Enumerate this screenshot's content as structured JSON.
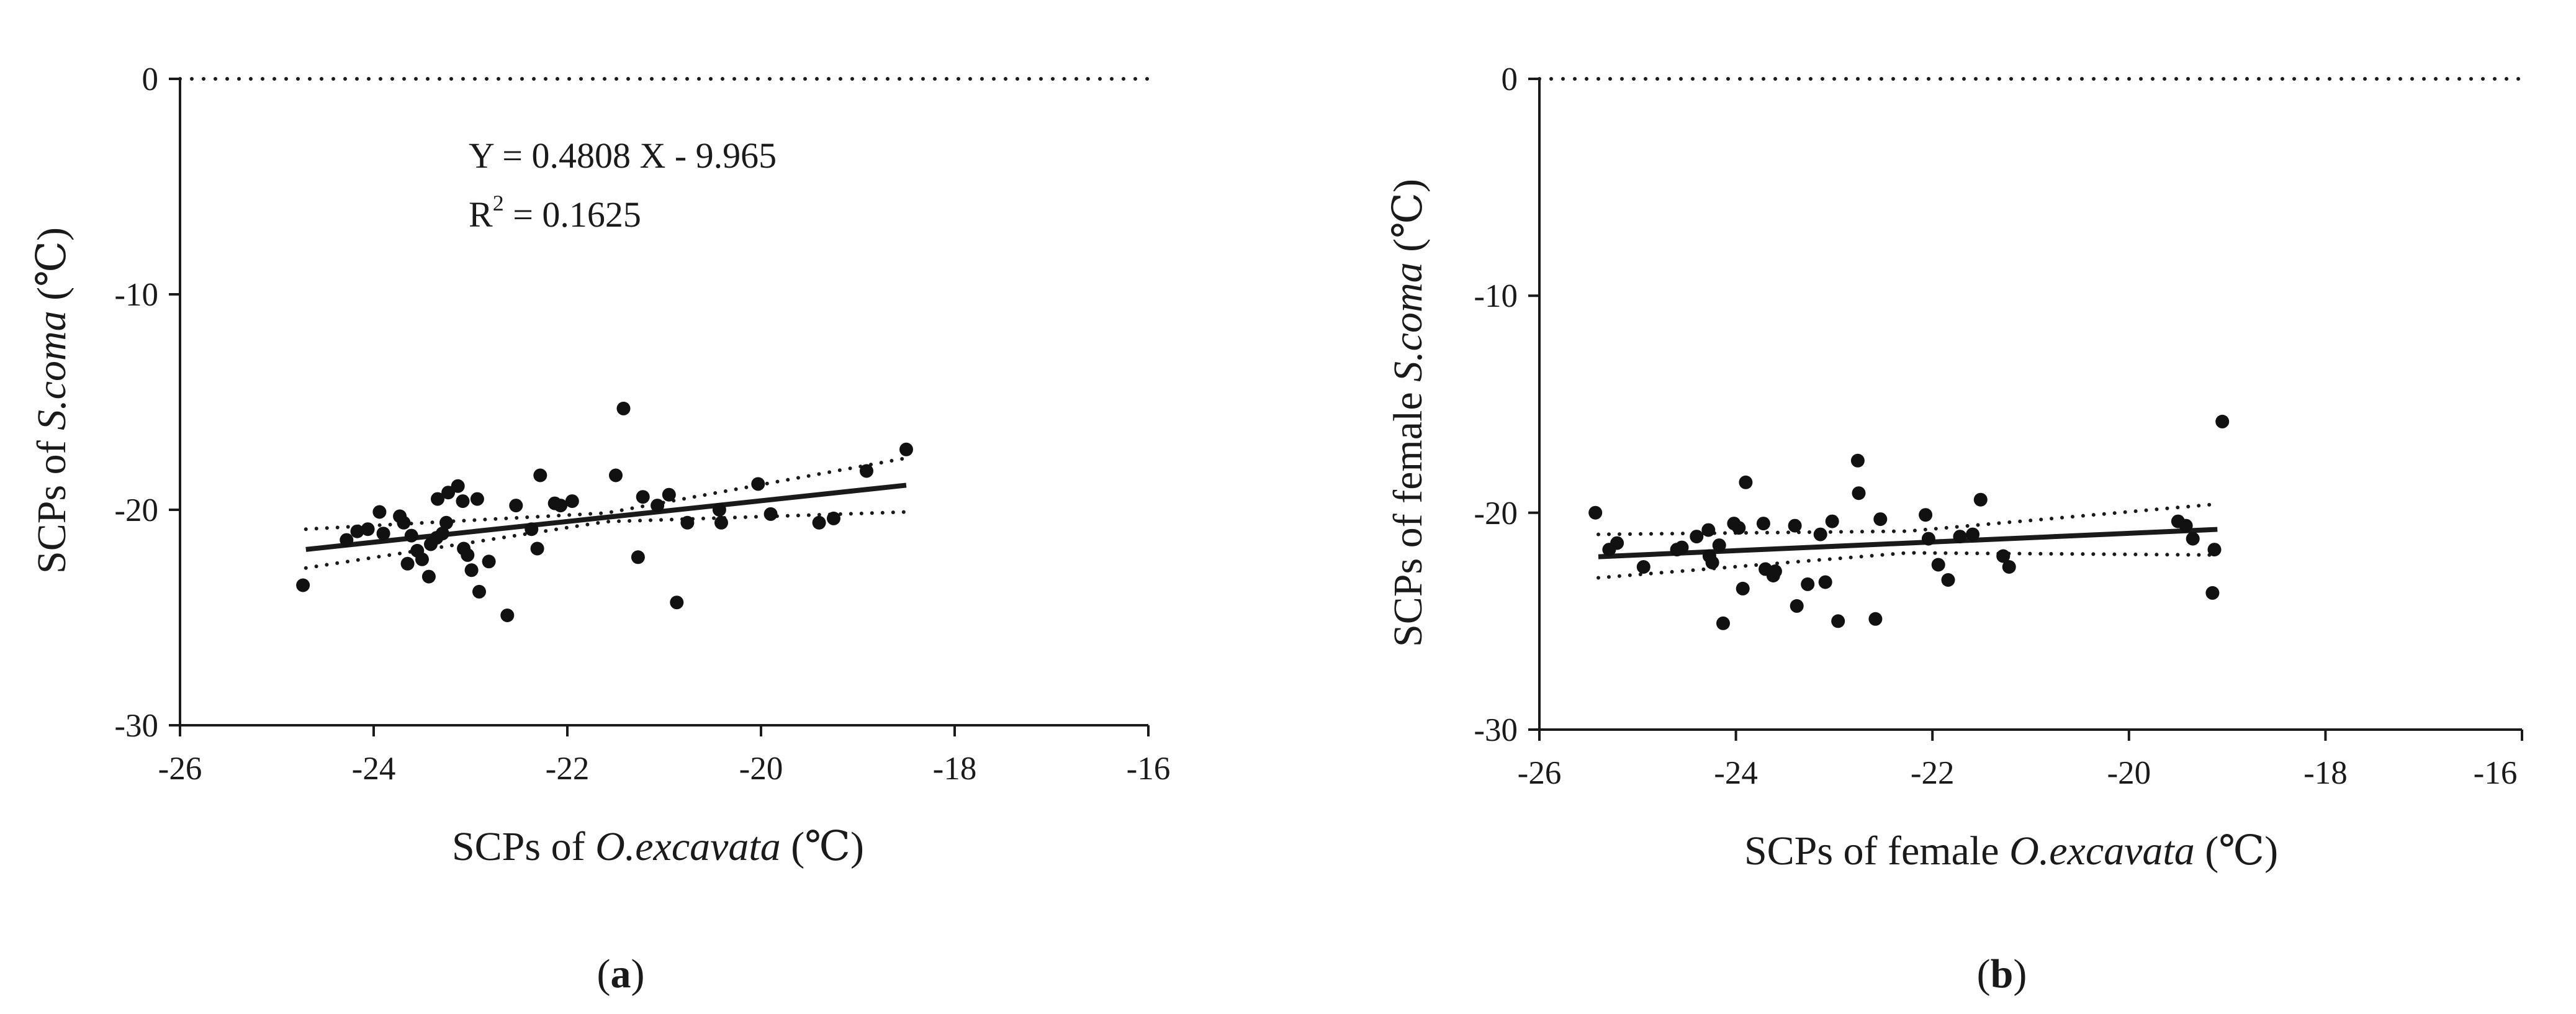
{
  "chart_data": [
    {
      "type": "scatter",
      "panel_label": {
        "open": "(",
        "letter": "a",
        "close": ")"
      },
      "xlabel_parts": {
        "prefix": "SCPs of ",
        "italic": "O.excavata",
        "suffix": " (℃)"
      },
      "ylabel_parts": {
        "prefix": "SCPs of ",
        "italic": "S.coma",
        "suffix": " (℃)"
      },
      "xlim": [
        -26,
        -16
      ],
      "ylim": [
        -30,
        0
      ],
      "x_ticks": [
        -26,
        -24,
        -22,
        -20,
        -18,
        -16
      ],
      "y_ticks": [
        0,
        -10,
        -20,
        -30
      ],
      "x_tick_labels": [
        "-26",
        "-24",
        "-22",
        "-20",
        "-18",
        "-16"
      ],
      "y_tick_labels": [
        "0",
        "-10",
        "-20",
        "-30"
      ],
      "reference_line_y": 0,
      "annotation": {
        "equation": "Y = 0.4808 X - 9.965",
        "r2_label": "R",
        "r2_sup": "2",
        "r2_value": " = 0.1625"
      },
      "fit": {
        "slope": 0.4808,
        "intercept": -9.965,
        "x_range": [
          -24.7,
          -18.5
        ]
      },
      "confidence_band": {
        "x": [
          -24.7,
          -21.6,
          -18.5
        ],
        "upper": [
          -20.9,
          -20.15,
          -17.6
        ],
        "lower": [
          -22.7,
          -20.55,
          -20.1
        ]
      },
      "points": [
        [
          -24.73,
          -23.5
        ],
        [
          -24.28,
          -21.4
        ],
        [
          -24.17,
          -21.0
        ],
        [
          -24.06,
          -20.9
        ],
        [
          -23.94,
          -20.1
        ],
        [
          -23.9,
          -21.1
        ],
        [
          -23.73,
          -20.3
        ],
        [
          -23.69,
          -20.6
        ],
        [
          -23.65,
          -22.5
        ],
        [
          -23.61,
          -21.2
        ],
        [
          -23.55,
          -21.9
        ],
        [
          -23.5,
          -22.3
        ],
        [
          -23.43,
          -23.1
        ],
        [
          -23.41,
          -21.6
        ],
        [
          -23.35,
          -21.3
        ],
        [
          -23.34,
          -19.5
        ],
        [
          -23.29,
          -21.1
        ],
        [
          -23.25,
          -20.6
        ],
        [
          -23.23,
          -19.2
        ],
        [
          -23.13,
          -18.9
        ],
        [
          -23.08,
          -19.6
        ],
        [
          -23.07,
          -21.8
        ],
        [
          -23.03,
          -22.1
        ],
        [
          -22.99,
          -22.8
        ],
        [
          -22.93,
          -19.5
        ],
        [
          -22.91,
          -23.8
        ],
        [
          -22.81,
          -22.4
        ],
        [
          -22.62,
          -24.9
        ],
        [
          -22.53,
          -19.8
        ],
        [
          -22.37,
          -20.9
        ],
        [
          -22.31,
          -21.8
        ],
        [
          -22.28,
          -18.4
        ],
        [
          -22.13,
          -19.7
        ],
        [
          -22.07,
          -19.8
        ],
        [
          -21.95,
          -19.6
        ],
        [
          -21.5,
          -18.4
        ],
        [
          -21.42,
          -15.3
        ],
        [
          -21.27,
          -22.2
        ],
        [
          -21.22,
          -19.4
        ],
        [
          -21.07,
          -19.8
        ],
        [
          -20.95,
          -19.3
        ],
        [
          -20.87,
          -24.3
        ],
        [
          -20.76,
          -20.6
        ],
        [
          -20.43,
          -20.0
        ],
        [
          -20.41,
          -20.6
        ],
        [
          -20.03,
          -18.8
        ],
        [
          -19.9,
          -20.2
        ],
        [
          -19.4,
          -20.6
        ],
        [
          -19.25,
          -20.4
        ],
        [
          -18.91,
          -18.2
        ],
        [
          -18.5,
          -17.2
        ]
      ]
    },
    {
      "type": "scatter",
      "panel_label": {
        "open": "(",
        "letter": "b",
        "close": ")"
      },
      "xlabel_parts": {
        "prefix": "SCPs of female ",
        "italic": "O.excavata",
        "suffix": " (℃)"
      },
      "ylabel_parts": {
        "prefix": "SCPs of female ",
        "italic": "S.coma",
        "suffix": " (℃)"
      },
      "xlim": [
        -26,
        -16
      ],
      "ylim": [
        -30,
        0
      ],
      "x_ticks": [
        -26,
        -24,
        -22,
        -20,
        -18,
        -16
      ],
      "y_ticks": [
        0,
        -10,
        -20,
        -30
      ],
      "x_tick_labels": [
        "-26",
        "-24",
        "-22",
        "-20",
        "-18",
        "-16"
      ],
      "y_tick_labels": [
        "0",
        "-10",
        "-20",
        "-30"
      ],
      "reference_line_y": 0,
      "fit": {
        "slope": 0.2,
        "intercept": -16.95,
        "x_range": [
          -25.4,
          -19.1
        ]
      },
      "confidence_band": {
        "x": [
          -25.4,
          -22.25,
          -19.1
        ],
        "upper": [
          -21.0,
          -20.85,
          -19.6
        ],
        "lower": [
          -23.0,
          -21.85,
          -21.95
        ]
      },
      "points": [
        [
          -25.43,
          -20.0
        ],
        [
          -25.29,
          -21.7
        ],
        [
          -25.21,
          -21.4
        ],
        [
          -24.94,
          -22.5
        ],
        [
          -24.6,
          -21.7
        ],
        [
          -24.55,
          -21.6
        ],
        [
          -24.4,
          -21.1
        ],
        [
          -24.28,
          -20.8
        ],
        [
          -24.27,
          -22.0
        ],
        [
          -24.24,
          -22.3
        ],
        [
          -24.17,
          -21.5
        ],
        [
          -24.13,
          -25.1
        ],
        [
          -24.02,
          -20.5
        ],
        [
          -23.97,
          -20.7
        ],
        [
          -23.93,
          -23.5
        ],
        [
          -23.9,
          -18.6
        ],
        [
          -23.72,
          -20.5
        ],
        [
          -23.7,
          -22.6
        ],
        [
          -23.62,
          -22.9
        ],
        [
          -23.6,
          -22.7
        ],
        [
          -23.4,
          -20.6
        ],
        [
          -23.38,
          -24.3
        ],
        [
          -23.27,
          -23.3
        ],
        [
          -23.14,
          -21.0
        ],
        [
          -23.09,
          -23.2
        ],
        [
          -23.02,
          -20.4
        ],
        [
          -22.96,
          -25.0
        ],
        [
          -22.76,
          -17.6
        ],
        [
          -22.75,
          -19.1
        ],
        [
          -22.58,
          -24.9
        ],
        [
          -22.53,
          -20.3
        ],
        [
          -22.07,
          -20.1
        ],
        [
          -22.04,
          -21.2
        ],
        [
          -21.94,
          -22.4
        ],
        [
          -21.84,
          -23.1
        ],
        [
          -21.72,
          -21.1
        ],
        [
          -21.59,
          -21.0
        ],
        [
          -21.51,
          -19.4
        ],
        [
          -21.28,
          -22.0
        ],
        [
          -21.22,
          -22.5
        ],
        [
          -19.5,
          -20.4
        ],
        [
          -19.42,
          -20.6
        ],
        [
          -19.35,
          -21.2
        ],
        [
          -19.15,
          -23.7
        ],
        [
          -19.13,
          -21.7
        ],
        [
          -19.05,
          -15.8
        ]
      ]
    }
  ]
}
